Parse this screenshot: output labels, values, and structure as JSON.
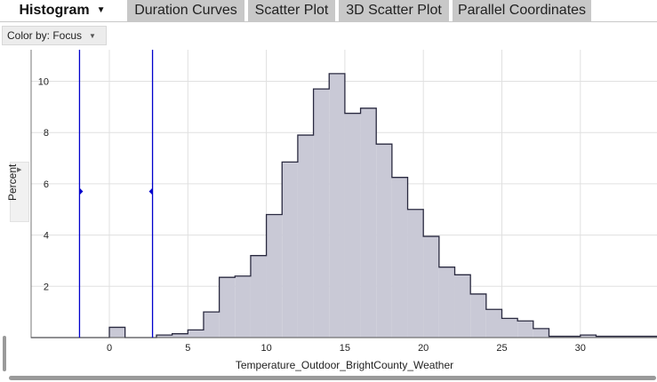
{
  "tabs": {
    "active": "Histogram",
    "others": [
      "Duration Curves",
      "Scatter Plot",
      "3D Scatter Plot",
      "Parallel Coordinates"
    ]
  },
  "toolbar": {
    "color_by": "Color by: Focus"
  },
  "colors": {
    "fill": "#c9c9d6",
    "outline": "#2a2a40",
    "grid": "#e0e0e0",
    "markers": "#0000cc",
    "tab_inactive": "#c8c8c8"
  },
  "chart_data": {
    "type": "histogram",
    "xlabel": "Temperature_Outdoor_BrightCounty_Weather",
    "ylabel": "Percent",
    "xlim": [
      -5,
      35
    ],
    "ylim": [
      0,
      11
    ],
    "x_ticks": [
      0,
      5,
      10,
      15,
      20,
      25,
      30
    ],
    "y_ticks": [
      2,
      4,
      6,
      8,
      10
    ],
    "grid": true,
    "bin_width": 1,
    "bin_edges_start": -5,
    "values": [
      0,
      0,
      0,
      0,
      0,
      0.4,
      0,
      0,
      0.1,
      0.15,
      0.3,
      1.0,
      2.35,
      2.4,
      3.2,
      4.8,
      6.85,
      7.9,
      9.7,
      10.3,
      8.75,
      8.95,
      7.55,
      6.25,
      5.0,
      3.95,
      2.75,
      2.45,
      1.7,
      1.1,
      0.75,
      0.65,
      0.35,
      0.05,
      0.05,
      0.1,
      0.05,
      0.05,
      0.05,
      0.05
    ],
    "markers": [
      {
        "x": -1.9,
        "y": 5.7,
        "direction": "right"
      },
      {
        "x": 2.75,
        "y": 5.7,
        "direction": "left"
      }
    ]
  }
}
